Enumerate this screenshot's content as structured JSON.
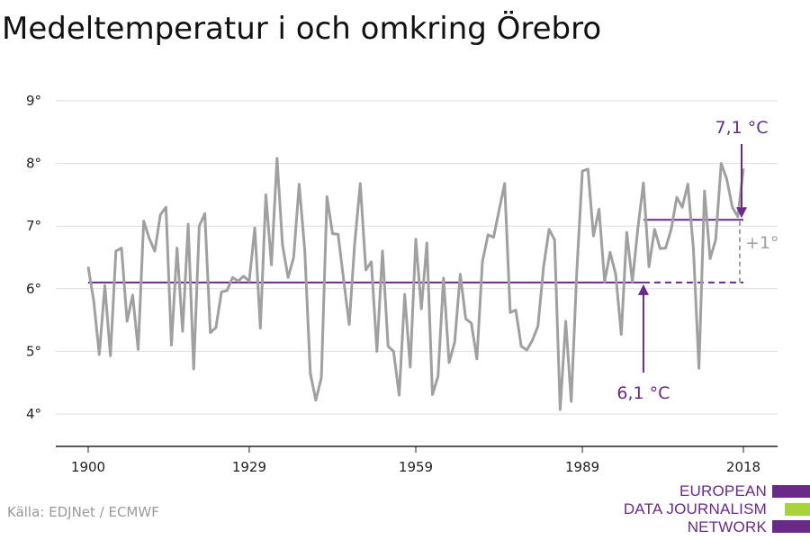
{
  "title": "Medeltemperatur i och omkring Örebro",
  "source": "Källa: EDJNet / ECMWF",
  "logo": {
    "lines": [
      "EUROPEAN",
      "DATA JOURNALISM",
      "NETWORK"
    ],
    "colors": {
      "primary": "#6a2a8c",
      "accent": "#a6d43a"
    }
  },
  "colors": {
    "series": "#a0a0a0",
    "reference": "#6a2a8c",
    "delta": "#a0a0a0",
    "grid": "#dddddd"
  },
  "chart_data": {
    "type": "line",
    "title": "Medeltemperatur i och omkring Örebro",
    "xlabel": "",
    "ylabel": "",
    "xlim": [
      1900,
      2018
    ],
    "ylim": [
      3.5,
      9.3
    ],
    "grid": true,
    "x_ticks": [
      1900,
      1929,
      1959,
      1989,
      2018
    ],
    "y_ticks": [
      {
        "value": 4,
        "label": "4°"
      },
      {
        "value": 5,
        "label": "5°"
      },
      {
        "value": 6,
        "label": "6°"
      },
      {
        "value": 7,
        "label": "7°"
      },
      {
        "value": 8,
        "label": "8°"
      },
      {
        "value": 9,
        "label": "9°"
      }
    ],
    "series": [
      {
        "x": [
          1900,
          1901,
          1902,
          1903,
          1904,
          1905,
          1906,
          1907,
          1908,
          1909,
          1910,
          1911,
          1912,
          1913,
          1914,
          1915,
          1916,
          1917,
          1918,
          1919,
          1920,
          1921,
          1922,
          1923,
          1924,
          1925,
          1926,
          1927,
          1928,
          1929,
          1930,
          1931,
          1932,
          1933,
          1934,
          1935,
          1936,
          1937,
          1938,
          1939,
          1940,
          1941,
          1942,
          1943,
          1944,
          1945,
          1946,
          1947,
          1948,
          1949,
          1950,
          1951,
          1952,
          1953,
          1954,
          1955,
          1956,
          1957,
          1958,
          1959,
          1960,
          1961,
          1962,
          1963,
          1964,
          1965,
          1966,
          1967,
          1968,
          1969,
          1970,
          1971,
          1972,
          1973,
          1974,
          1975,
          1976,
          1977,
          1978,
          1979,
          1980,
          1981,
          1982,
          1983,
          1984,
          1985,
          1986,
          1987,
          1988,
          1989,
          1990,
          1991,
          1992,
          1993,
          1994,
          1995,
          1996,
          1997,
          1998,
          1999,
          2000,
          2001,
          2002,
          2003,
          2004,
          2005,
          2006,
          2007,
          2008,
          2009,
          2010,
          2011,
          2012,
          2013,
          2014,
          2015,
          2016,
          2017,
          2018
        ],
        "values": [
          6.35,
          5.8,
          4.95,
          6.05,
          4.93,
          6.6,
          6.65,
          5.48,
          5.9,
          5.03,
          7.08,
          6.8,
          6.6,
          7.18,
          7.3,
          5.1,
          6.65,
          5.32,
          7.03,
          4.72,
          7.0,
          7.2,
          5.3,
          5.38,
          5.95,
          5.97,
          6.18,
          6.12,
          6.2,
          6.12,
          6.97,
          5.37,
          7.5,
          6.38,
          8.08,
          6.7,
          6.18,
          6.5,
          7.67,
          6.62,
          4.65,
          4.22,
          4.58,
          7.47,
          6.88,
          6.87,
          6.15,
          5.43,
          6.72,
          7.68,
          6.3,
          6.43,
          5.0,
          6.6,
          5.08,
          5.0,
          4.3,
          5.91,
          4.75,
          6.79,
          5.68,
          6.73,
          4.31,
          4.6,
          6.17,
          4.82,
          5.15,
          6.23,
          5.52,
          5.45,
          4.88,
          6.43,
          6.86,
          6.82,
          7.25,
          7.68,
          5.62,
          5.66,
          5.08,
          5.02,
          5.18,
          5.4,
          6.34,
          6.95,
          6.78,
          4.07,
          5.48,
          4.2,
          6.28,
          7.88,
          7.91,
          6.84,
          7.27,
          6.11,
          6.58,
          6.23,
          5.27,
          6.9,
          6.11,
          6.97,
          7.69,
          6.35,
          6.95,
          6.64,
          6.65,
          6.95,
          7.46,
          7.3,
          7.67,
          6.63,
          4.73,
          7.56,
          6.48,
          6.78,
          8.0,
          7.75,
          7.3,
          7.15,
          7.92
        ]
      }
    ],
    "reference_lines": [
      {
        "label": "6,1 °C",
        "value": 6.1,
        "x_start": 1900,
        "x_solid_end": 2000,
        "x_end": 2018
      },
      {
        "label": "7,1 °C",
        "value": 7.1,
        "x_start": 2000,
        "x_end": 2018
      }
    ],
    "annotations": [
      {
        "text": "+1°",
        "from": 6.1,
        "to": 7.1,
        "x": 2018
      }
    ]
  }
}
